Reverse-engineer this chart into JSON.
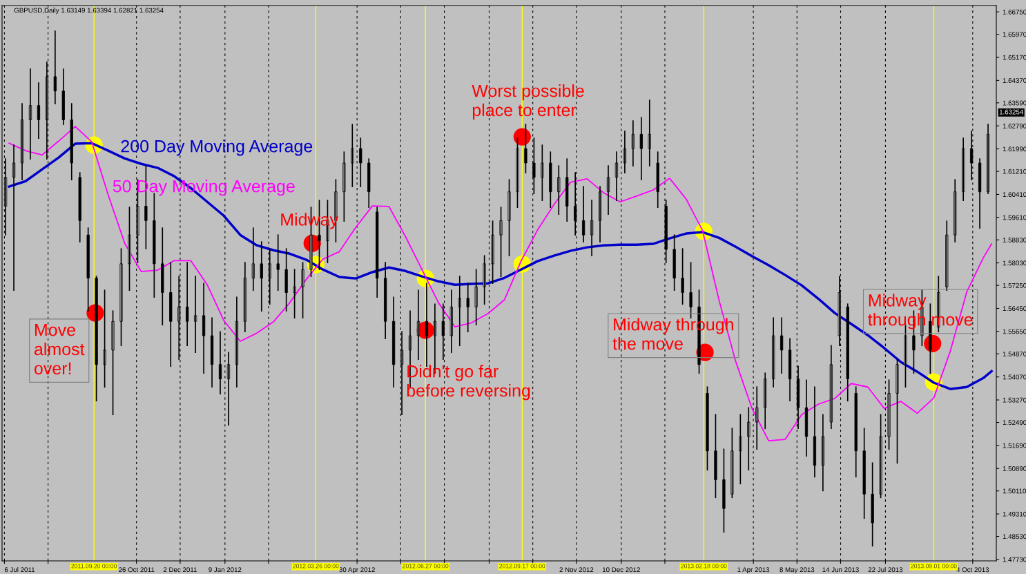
{
  "chart_data": {
    "type": "candlestick",
    "title": "GBPUSD,Daily 1.63149 1.63394 1.62821 1.63254",
    "color": "#000000",
    "x": [
      "2011-07-07",
      "2011-07-14",
      "2011-07-21",
      "2011-07-28",
      "2011-08-04",
      "2011-08-11",
      "2011-08-18",
      "2011-08-25",
      "2011-09-01",
      "2011-09-08",
      "2011-09-15",
      "2011-09-22",
      "2011-09-29",
      "2011-10-06",
      "2011-10-13",
      "2011-10-20",
      "2011-10-27",
      "2011-11-03",
      "2011-11-10",
      "2011-11-17",
      "2011-11-24",
      "2011-12-01",
      "2011-12-08",
      "2011-12-15",
      "2011-12-22",
      "2011-12-29",
      "2012-01-05",
      "2012-01-12",
      "2012-01-19",
      "2012-01-26",
      "2012-02-02",
      "2012-02-09",
      "2012-02-16",
      "2012-02-23",
      "2012-03-01",
      "2012-03-08",
      "2012-03-15",
      "2012-03-22",
      "2012-03-29",
      "2012-04-05",
      "2012-04-12",
      "2012-04-19",
      "2012-04-26",
      "2012-05-03",
      "2012-05-10",
      "2012-05-17",
      "2012-05-24",
      "2012-05-31",
      "2012-06-07",
      "2012-06-14",
      "2012-06-21",
      "2012-06-28",
      "2012-07-05",
      "2012-07-12",
      "2012-07-19",
      "2012-07-26",
      "2012-08-02",
      "2012-08-09",
      "2012-08-16",
      "2012-08-23",
      "2012-08-30",
      "2012-09-06",
      "2012-09-13",
      "2012-09-20",
      "2012-09-27",
      "2012-10-04",
      "2012-10-11",
      "2012-10-18",
      "2012-10-25",
      "2012-11-01",
      "2012-11-08",
      "2012-11-15",
      "2012-11-22",
      "2012-11-29",
      "2012-12-06",
      "2012-12-13",
      "2012-12-20",
      "2012-12-27",
      "2013-01-03",
      "2013-01-10",
      "2013-01-17",
      "2013-01-24",
      "2013-01-31",
      "2013-02-07",
      "2013-02-14",
      "2013-02-21",
      "2013-02-28",
      "2013-03-07",
      "2013-03-14",
      "2013-03-21",
      "2013-03-28",
      "2013-04-04",
      "2013-04-11",
      "2013-04-18",
      "2013-04-25",
      "2013-05-02",
      "2013-05-09",
      "2013-05-16",
      "2013-05-23",
      "2013-05-30",
      "2013-06-06",
      "2013-06-13",
      "2013-06-20",
      "2013-06-27",
      "2013-07-04",
      "2013-07-11",
      "2013-07-18",
      "2013-07-25",
      "2013-08-01",
      "2013-08-08",
      "2013-08-15",
      "2013-08-22",
      "2013-08-29",
      "2013-09-05",
      "2013-09-12",
      "2013-09-19",
      "2013-09-26",
      "2013-10-03",
      "2013-10-10",
      "2013-10-17"
    ],
    "ohlc": [
      [
        1.6,
        1.6164,
        1.59,
        1.61
      ],
      [
        1.61,
        1.6212,
        1.5708,
        1.615
      ],
      [
        1.615,
        1.6356,
        1.6092,
        1.63
      ],
      [
        1.63,
        1.6476,
        1.6164,
        1.635
      ],
      [
        1.635,
        1.6428,
        1.6236,
        1.63
      ],
      [
        1.63,
        1.65,
        1.6164,
        1.645
      ],
      [
        1.645,
        1.6608,
        1.6356,
        1.64
      ],
      [
        1.64,
        1.6476,
        1.6284,
        1.63
      ],
      [
        1.63,
        1.6356,
        1.6092,
        1.615
      ],
      [
        1.61,
        1.6116,
        1.5876,
        1.595
      ],
      [
        1.59,
        1.5924,
        1.5636,
        1.575
      ],
      [
        1.575,
        1.5756,
        1.5324,
        1.545
      ],
      [
        1.545,
        1.5708,
        1.5372,
        1.55
      ],
      [
        1.55,
        1.5636,
        1.5276,
        1.56
      ],
      [
        1.56,
        1.5852,
        1.5516,
        1.58
      ],
      [
        1.58,
        1.5996,
        1.5708,
        1.59
      ],
      [
        1.59,
        1.6092,
        1.5804,
        1.6
      ],
      [
        1.6,
        1.614,
        1.5852,
        1.595
      ],
      [
        1.595,
        1.6044,
        1.5684,
        1.58
      ],
      [
        1.58,
        1.5924,
        1.5588,
        1.57
      ],
      [
        1.57,
        1.5804,
        1.5444,
        1.56
      ],
      [
        1.56,
        1.5756,
        1.5468,
        1.565
      ],
      [
        1.565,
        1.5804,
        1.5516,
        1.56
      ],
      [
        1.56,
        1.5756,
        1.5492,
        1.562
      ],
      [
        1.562,
        1.5732,
        1.542,
        1.555
      ],
      [
        1.555,
        1.5612,
        1.5372,
        1.545
      ],
      [
        1.545,
        1.5564,
        1.5348,
        1.54
      ],
      [
        1.54,
        1.5492,
        1.524,
        1.545
      ],
      [
        1.545,
        1.5684,
        1.5372,
        1.56
      ],
      [
        1.56,
        1.5804,
        1.5564,
        1.575
      ],
      [
        1.575,
        1.5924,
        1.5708,
        1.58
      ],
      [
        1.58,
        1.5876,
        1.5636,
        1.575
      ],
      [
        1.575,
        1.5852,
        1.566,
        1.58
      ],
      [
        1.58,
        1.59,
        1.5708,
        1.578
      ],
      [
        1.578,
        1.5852,
        1.5636,
        1.57
      ],
      [
        1.57,
        1.578,
        1.5612,
        1.572
      ],
      [
        1.572,
        1.5804,
        1.5612,
        1.578
      ],
      [
        1.578,
        1.5996,
        1.5756,
        1.59
      ],
      [
        1.59,
        1.602,
        1.578,
        1.588
      ],
      [
        1.588,
        1.602,
        1.5804,
        1.595
      ],
      [
        1.595,
        1.6092,
        1.5876,
        1.605
      ],
      [
        1.605,
        1.6188,
        1.5948,
        1.615
      ],
      [
        1.615,
        1.6284,
        1.6068,
        1.62
      ],
      [
        1.62,
        1.6236,
        1.6068,
        1.615
      ],
      [
        1.615,
        1.6164,
        1.5996,
        1.605
      ],
      [
        1.598,
        1.5996,
        1.5684,
        1.575
      ],
      [
        1.575,
        1.5804,
        1.554,
        1.56
      ],
      [
        1.56,
        1.5684,
        1.5372,
        1.545
      ],
      [
        1.545,
        1.5564,
        1.5276,
        1.55
      ],
      [
        1.55,
        1.5636,
        1.5372,
        1.555
      ],
      [
        1.555,
        1.5708,
        1.5468,
        1.56
      ],
      [
        1.56,
        1.5732,
        1.5444,
        1.555
      ],
      [
        1.555,
        1.566,
        1.542,
        1.56
      ],
      [
        1.56,
        1.566,
        1.5468,
        1.555
      ],
      [
        1.555,
        1.5708,
        1.5492,
        1.565
      ],
      [
        1.565,
        1.5756,
        1.5516,
        1.568
      ],
      [
        1.568,
        1.5732,
        1.5564,
        1.565
      ],
      [
        1.565,
        1.578,
        1.5588,
        1.572
      ],
      [
        1.572,
        1.5828,
        1.566,
        1.58
      ],
      [
        1.58,
        1.5948,
        1.5732,
        1.59
      ],
      [
        1.59,
        1.5996,
        1.5756,
        1.595
      ],
      [
        1.595,
        1.6092,
        1.5828,
        1.605
      ],
      [
        1.605,
        1.6236,
        1.5996,
        1.62
      ],
      [
        1.62,
        1.6284,
        1.6116,
        1.615
      ],
      [
        1.615,
        1.6236,
        1.6044,
        1.61
      ],
      [
        1.61,
        1.6212,
        1.602,
        1.615
      ],
      [
        1.615,
        1.6188,
        1.5996,
        1.605
      ],
      [
        1.605,
        1.614,
        1.5972,
        1.61
      ],
      [
        1.61,
        1.6164,
        1.5948,
        1.6
      ],
      [
        1.6,
        1.6116,
        1.59,
        1.595
      ],
      [
        1.595,
        1.6068,
        1.5876,
        1.59
      ],
      [
        1.59,
        1.602,
        1.5828,
        1.595
      ],
      [
        1.595,
        1.6068,
        1.5876,
        1.605
      ],
      [
        1.605,
        1.614,
        1.5972,
        1.61
      ],
      [
        1.61,
        1.6188,
        1.602,
        1.615
      ],
      [
        1.615,
        1.626,
        1.6116,
        1.62
      ],
      [
        1.62,
        1.6296,
        1.614,
        1.625
      ],
      [
        1.625,
        1.6308,
        1.6092,
        1.62
      ],
      [
        1.62,
        1.6368,
        1.614,
        1.625
      ],
      [
        1.615,
        1.6188,
        1.5996,
        1.605
      ],
      [
        1.6,
        1.602,
        1.5804,
        1.585
      ],
      [
        1.585,
        1.59,
        1.5708,
        1.575
      ],
      [
        1.575,
        1.5852,
        1.566,
        1.57
      ],
      [
        1.57,
        1.5804,
        1.5612,
        1.565
      ],
      [
        1.565,
        1.5708,
        1.542,
        1.545
      ],
      [
        1.535,
        1.5372,
        1.5084,
        1.515
      ],
      [
        1.515,
        1.5276,
        1.4988,
        1.505
      ],
      [
        1.505,
        1.5156,
        1.4868,
        1.495
      ],
      [
        1.5,
        1.5228,
        1.4988,
        1.515
      ],
      [
        1.515,
        1.5276,
        1.5036,
        1.52
      ],
      [
        1.52,
        1.53,
        1.5084,
        1.525
      ],
      [
        1.525,
        1.5372,
        1.5156,
        1.53
      ],
      [
        1.53,
        1.542,
        1.5228,
        1.54
      ],
      [
        1.54,
        1.5612,
        1.5372,
        1.555
      ],
      [
        1.555,
        1.5612,
        1.542,
        1.55
      ],
      [
        1.55,
        1.554,
        1.5324,
        1.54
      ],
      [
        1.54,
        1.5444,
        1.5228,
        1.53
      ],
      [
        1.53,
        1.5396,
        1.5132,
        1.52
      ],
      [
        1.52,
        1.5372,
        1.506,
        1.51
      ],
      [
        1.51,
        1.5276,
        1.5012,
        1.52
      ],
      [
        1.525,
        1.5516,
        1.5228,
        1.545
      ],
      [
        1.555,
        1.5756,
        1.5516,
        1.57
      ],
      [
        1.565,
        1.566,
        1.5324,
        1.54
      ],
      [
        1.535,
        1.5372,
        1.506,
        1.515
      ],
      [
        1.515,
        1.5228,
        1.4916,
        1.5
      ],
      [
        1.5,
        1.5108,
        1.482,
        1.49
      ],
      [
        1.5,
        1.5276,
        1.4988,
        1.52
      ],
      [
        1.52,
        1.5396,
        1.5156,
        1.535
      ],
      [
        1.535,
        1.5468,
        1.5108,
        1.545
      ],
      [
        1.545,
        1.5588,
        1.5372,
        1.555
      ],
      [
        1.555,
        1.5636,
        1.542,
        1.55
      ],
      [
        1.555,
        1.5708,
        1.5516,
        1.565
      ],
      [
        1.56,
        1.566,
        1.542,
        1.55
      ],
      [
        1.558,
        1.5756,
        1.5564,
        1.57
      ],
      [
        1.572,
        1.5948,
        1.5708,
        1.59
      ],
      [
        1.59,
        1.6092,
        1.5876,
        1.605
      ],
      [
        1.605,
        1.6236,
        1.602,
        1.62
      ],
      [
        1.62,
        1.626,
        1.6092,
        1.615
      ],
      [
        1.615,
        1.6164,
        1.5924,
        1.605
      ],
      [
        1.605,
        1.6284,
        1.6044,
        1.625
      ]
    ],
    "series": [
      {
        "type": "line",
        "name": "200 Day Moving Average",
        "color": "#0000c8",
        "x": [
          "2011-07-10",
          "2011-07-24",
          "2011-08-07",
          "2011-08-21",
          "2011-09-04",
          "2011-09-18",
          "2011-10-02",
          "2011-10-16",
          "2011-10-30",
          "2011-11-13",
          "2011-11-27",
          "2011-12-11",
          "2011-12-25",
          "2012-01-08",
          "2012-01-22",
          "2012-02-05",
          "2012-02-19",
          "2012-03-04",
          "2012-03-18",
          "2012-04-01",
          "2012-04-15",
          "2012-04-29",
          "2012-05-13",
          "2012-05-27",
          "2012-06-10",
          "2012-06-24",
          "2012-07-08",
          "2012-07-22",
          "2012-08-05",
          "2012-08-19",
          "2012-09-02",
          "2012-09-16",
          "2012-09-30",
          "2012-10-14",
          "2012-10-28",
          "2012-11-11",
          "2012-11-25",
          "2012-12-09",
          "2012-12-23",
          "2013-01-06",
          "2013-01-20",
          "2013-02-03",
          "2013-02-17",
          "2013-03-03",
          "2013-03-17",
          "2013-03-31",
          "2013-04-14",
          "2013-04-28",
          "2013-05-12",
          "2013-05-26",
          "2013-06-09",
          "2013-06-23",
          "2013-07-07",
          "2013-07-21",
          "2013-08-04",
          "2013-08-18",
          "2013-09-01",
          "2013-09-15",
          "2013-09-29",
          "2013-10-13",
          "2013-10-20"
        ],
        "values": [
          1.6068,
          1.6087,
          1.6128,
          1.6169,
          1.6217,
          1.6219,
          1.6193,
          1.6166,
          1.6147,
          1.6133,
          1.6104,
          1.6063,
          1.6015,
          1.5967,
          1.59,
          1.5864,
          1.5847,
          1.5835,
          1.5814,
          1.578,
          1.5754,
          1.5749,
          1.5771,
          1.5787,
          1.5775,
          1.5756,
          1.5739,
          1.5727,
          1.573,
          1.5732,
          1.5751,
          1.578,
          1.5809,
          1.5828,
          1.5845,
          1.5857,
          1.5864,
          1.5866,
          1.5866,
          1.5869,
          1.5888,
          1.5905,
          1.591,
          1.589,
          1.5859,
          1.5826,
          1.5795,
          1.5761,
          1.5725,
          1.5679,
          1.5629,
          1.5591,
          1.5552,
          1.5507,
          1.5459,
          1.5425,
          1.5387,
          1.5365,
          1.5372,
          1.5403,
          1.5427
        ]
      },
      {
        "type": "line",
        "name": "50 Day Moving Average",
        "color": "#ff00ff",
        "x": [
          "2011-07-10",
          "2011-07-24",
          "2011-08-07",
          "2011-08-21",
          "2011-09-04",
          "2011-09-18",
          "2011-10-02",
          "2011-10-16",
          "2011-10-30",
          "2011-11-13",
          "2011-11-27",
          "2011-12-11",
          "2011-12-25",
          "2012-01-08",
          "2012-01-22",
          "2012-02-05",
          "2012-02-19",
          "2012-03-04",
          "2012-03-18",
          "2012-04-01",
          "2012-04-15",
          "2012-04-29",
          "2012-05-13",
          "2012-05-27",
          "2012-06-10",
          "2012-06-24",
          "2012-07-08",
          "2012-07-22",
          "2012-08-05",
          "2012-08-19",
          "2012-09-02",
          "2012-09-16",
          "2012-09-30",
          "2012-10-14",
          "2012-10-28",
          "2012-11-11",
          "2012-11-25",
          "2012-12-09",
          "2012-12-23",
          "2013-01-06",
          "2013-01-20",
          "2013-02-03",
          "2013-02-17",
          "2013-03-03",
          "2013-03-17",
          "2013-03-31",
          "2013-04-14",
          "2013-04-28",
          "2013-05-12",
          "2013-05-26",
          "2013-06-09",
          "2013-06-23",
          "2013-07-07",
          "2013-07-21",
          "2013-08-04",
          "2013-08-18",
          "2013-09-01",
          "2013-09-15",
          "2013-09-29",
          "2013-10-13",
          "2013-10-20"
        ],
        "values": [
          1.6219,
          1.6193,
          1.6178,
          1.6226,
          1.6277,
          1.6224,
          1.6039,
          1.5871,
          1.5773,
          1.5778,
          1.5811,
          1.5811,
          1.5727,
          1.5603,
          1.5531,
          1.5559,
          1.5598,
          1.5665,
          1.5746,
          1.5816,
          1.5842,
          1.5927,
          1.6001,
          1.5999,
          1.5895,
          1.578,
          1.5665,
          1.5581,
          1.5595,
          1.5627,
          1.5675,
          1.5809,
          1.5917,
          1.6006,
          1.6083,
          1.6095,
          1.6047,
          1.6015,
          1.6035,
          1.6056,
          1.6097,
          1.6025,
          1.5915,
          1.5672,
          1.5461,
          1.5296,
          1.5185,
          1.519,
          1.5276,
          1.5312,
          1.5332,
          1.5384,
          1.5372,
          1.5298,
          1.5322,
          1.5281,
          1.5334,
          1.5497,
          1.5703,
          1.5821,
          1.5869
        ]
      },
      {
        "type": "scatter",
        "color": "#ffff00",
        "marker": "circle",
        "x": [
          "2011-09-20",
          "2012-03-26",
          "2012-06-27",
          "2012-09-17",
          "2013-02-18",
          "2013-09-01"
        ],
        "values": [
          1.6212,
          1.5797,
          1.5749,
          1.5799,
          1.5912,
          1.5389
        ]
      },
      {
        "type": "scatter",
        "color": "#ff0000",
        "marker": "circle",
        "x": [
          "2011-09-21",
          "2012-03-23",
          "2012-06-27",
          "2012-09-17",
          "2013-02-19",
          "2013-08-31"
        ],
        "values": [
          1.5629,
          1.5871,
          1.5569,
          1.6241,
          1.5492,
          1.5523
        ]
      }
    ],
    "xlim": [
      "2011-07-04",
      "2013-10-24"
    ],
    "ylim": [
      1.4768,
      1.6697
    ],
    "xticks": [
      {
        "value": "2011-07-06",
        "label": "6 Jul 2011"
      },
      {
        "value": "2011-08-12",
        "label": null
      },
      {
        "value": "2011-10-26",
        "label": "26 Oct 2011"
      },
      {
        "value": "2011-12-02",
        "label": "2 Dec 2011"
      },
      {
        "value": "2012-01-09",
        "label": "9 Jan 2012"
      },
      {
        "value": "2012-02-15",
        "label": null
      },
      {
        "value": "2012-04-30",
        "label": "30 Apr 2012"
      },
      {
        "value": "2012-06-06",
        "label": null
      },
      {
        "value": "2012-07-13",
        "label": null
      },
      {
        "value": "2012-08-20",
        "label": null
      },
      {
        "value": "2012-09-26",
        "label": null
      },
      {
        "value": "2012-11-02",
        "label": "2 Nov 2012"
      },
      {
        "value": "2012-12-10",
        "label": "10 Dec 2012"
      },
      {
        "value": "2013-01-16",
        "label": null
      },
      {
        "value": "2013-04-01",
        "label": "1 Apr 2013"
      },
      {
        "value": "2013-05-08",
        "label": "8 May 2013"
      },
      {
        "value": "2013-06-14",
        "label": "14 Jun 2013"
      },
      {
        "value": "2013-07-22",
        "label": "22 Jul 2013"
      },
      {
        "value": "2013-10-04",
        "label": "4 Oct 2013"
      }
    ],
    "yticks": [
      {
        "value": 1.6675,
        "label": "1.66750"
      },
      {
        "value": 1.6597,
        "label": "1.65970"
      },
      {
        "value": 1.6517,
        "label": "1.65170"
      },
      {
        "value": 1.6437,
        "label": "1.64370"
      },
      {
        "value": 1.6359,
        "label": "1.63590"
      },
      {
        "value": 1.6279,
        "label": "1.62790"
      },
      {
        "value": 1.6199,
        "label": "1.61990"
      },
      {
        "value": 1.6121,
        "label": "1.61210"
      },
      {
        "value": 1.6041,
        "label": "1.60410"
      },
      {
        "value": 1.5961,
        "label": "1.59610"
      },
      {
        "value": 1.5883,
        "label": "1.58830"
      },
      {
        "value": 1.5803,
        "label": "1.58030"
      },
      {
        "value": 1.5725,
        "label": "1.57250"
      },
      {
        "value": 1.5645,
        "label": "1.56450"
      },
      {
        "value": 1.5565,
        "label": "1.55650"
      },
      {
        "value": 1.5487,
        "label": "1.54870"
      },
      {
        "value": 1.5407,
        "label": "1.54070"
      },
      {
        "value": 1.5327,
        "label": "1.53270"
      },
      {
        "value": 1.5249,
        "label": "1.52490"
      },
      {
        "value": 1.5169,
        "label": "1.51690"
      },
      {
        "value": 1.5089,
        "label": "1.50890"
      },
      {
        "value": 1.5011,
        "label": "1.50110"
      },
      {
        "value": 1.4931,
        "label": "1.49310"
      },
      {
        "value": 1.4853,
        "label": "1.48530"
      },
      {
        "value": 1.4773,
        "label": "1.47730"
      }
    ],
    "grid": "x",
    "ref_lines": [
      {
        "axis": "x",
        "value": "2011-09-20",
        "label": "2011.09.20 00:00",
        "color": "#ffff00"
      },
      {
        "axis": "x",
        "value": "2012-03-26",
        "label": "2012.03.26 00:00",
        "color": "#ffff00"
      },
      {
        "axis": "x",
        "value": "2012-06-27",
        "label": "2012.06.27 00:00",
        "color": "#ffff00"
      },
      {
        "axis": "x",
        "value": "2012-09-17",
        "label": "2012.09.17 00:00",
        "color": "#ffff00"
      },
      {
        "axis": "x",
        "value": "2013-02-18",
        "label": "2013.02.18 00:00",
        "color": "#ffff00"
      },
      {
        "axis": "x",
        "value": "2013-09-01",
        "label": "2013.09.01 00:00",
        "color": "#ffff00"
      }
    ],
    "annotations": [
      {
        "text": "Move\nalmost\nover!",
        "x": "2011-09-21",
        "y": 1.5629
      },
      {
        "text": "Midway",
        "x": "2012-03-23",
        "y": 1.5871
      },
      {
        "text": "Didn't go far\nbefore reversing",
        "x": "2012-06-27",
        "y": 1.5569
      },
      {
        "text": "Worst possible\nplace to enter",
        "x": "2012-09-17",
        "y": 1.6241
      },
      {
        "text": "Midway through\nthe move",
        "x": "2013-02-19",
        "y": 1.5492
      },
      {
        "text": "Midway\nthrough move",
        "x": "2013-08-31",
        "y": 1.5523
      },
      {
        "text": "1.63254",
        "y": 1.63254
      }
    ]
  }
}
